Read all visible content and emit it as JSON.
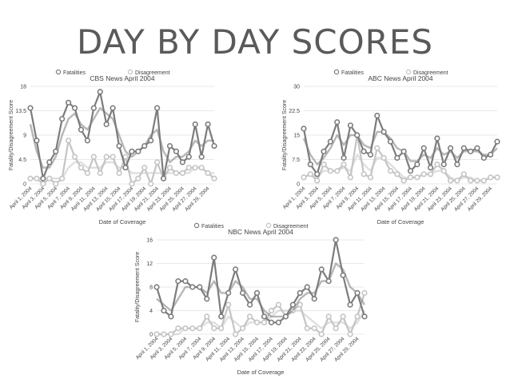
{
  "title": "DAY  BY DAY SCORES",
  "x_label_pattern": "April {n}, 2004",
  "chart_data": [
    {
      "type": "line",
      "title": "CBS News April 2004",
      "xlabel": "Date of Coverage",
      "ylabel": "Fatality/Disagreement Score",
      "ylim": [
        0,
        18
      ],
      "yticks": [
        0,
        4.5,
        9,
        13.5,
        18
      ],
      "x": [
        1,
        2,
        3,
        4,
        5,
        6,
        7,
        8,
        9,
        10,
        11,
        12,
        13,
        14,
        15,
        16,
        17,
        18,
        19,
        20,
        21,
        22,
        23,
        24,
        25,
        26,
        27,
        28,
        29,
        30
      ],
      "legend": "top",
      "series": [
        {
          "name": "Fatalities",
          "color": "#7c7c7c",
          "values": [
            14,
            8,
            1,
            4,
            6,
            12,
            15,
            14,
            10,
            8,
            14,
            17,
            11,
            14,
            7,
            3,
            6,
            6,
            7,
            8,
            14,
            1,
            7,
            6,
            4,
            5,
            11,
            5,
            11,
            7
          ],
          "smooth": [
            11,
            6,
            3,
            3,
            5,
            9,
            12,
            13,
            11,
            10,
            12,
            14,
            13,
            12,
            9,
            6,
            5,
            6,
            7,
            9,
            10,
            6,
            4,
            5,
            5,
            6,
            8,
            7,
            8,
            8
          ]
        },
        {
          "name": "Disagreement",
          "color": "#c4c4c4",
          "values": [
            1,
            1,
            0,
            1,
            0,
            1,
            8,
            5,
            3,
            2,
            5,
            2,
            5,
            5,
            2,
            5,
            0,
            1,
            3,
            0,
            4,
            1,
            3,
            2,
            2,
            3,
            3,
            3,
            2,
            1
          ],
          "smooth": [
            1,
            1,
            1,
            1,
            1,
            1,
            3,
            4,
            4,
            3,
            3,
            3,
            4,
            4,
            3,
            3,
            2,
            2,
            2,
            2,
            2,
            2,
            2,
            2,
            2,
            2,
            3,
            3,
            2,
            2
          ]
        }
      ]
    },
    {
      "type": "line",
      "title": "ABC News April 2004",
      "xlabel": "Date of Coverage",
      "ylabel": "Fatality/Disagreement Score",
      "ylim": [
        0,
        30
      ],
      "yticks": [
        0,
        7.5,
        15,
        22.5,
        30
      ],
      "x": [
        1,
        2,
        3,
        4,
        5,
        6,
        7,
        8,
        9,
        10,
        11,
        12,
        13,
        14,
        15,
        16,
        17,
        18,
        19,
        20,
        21,
        22,
        23,
        24,
        25,
        26,
        27,
        28,
        29,
        30
      ],
      "legend": "top",
      "series": [
        {
          "name": "Fatalities",
          "color": "#7c7c7c",
          "values": [
            17,
            6,
            3,
            10,
            13,
            19,
            8,
            18,
            15,
            10,
            9,
            21,
            16,
            13,
            8,
            10,
            4,
            6,
            11,
            5,
            14,
            6,
            11,
            6,
            11,
            10,
            11,
            8,
            9,
            13
          ],
          "smooth": [
            14,
            9,
            6,
            8,
            11,
            15,
            12,
            15,
            15,
            12,
            11,
            16,
            16,
            14,
            11,
            10,
            7,
            7,
            9,
            8,
            11,
            9,
            10,
            8,
            10,
            10,
            10,
            9,
            9,
            11
          ]
        },
        {
          "name": "Disagreement",
          "color": "#c4c4c4",
          "values": [
            2,
            3,
            1,
            6,
            4,
            4,
            6,
            2,
            15,
            3,
            2,
            11,
            8,
            4,
            3,
            1,
            2,
            2,
            3,
            3,
            6,
            4,
            1,
            1,
            3,
            1,
            1,
            1,
            2,
            2
          ],
          "smooth": [
            2,
            3,
            2,
            4,
            4,
            4,
            5,
            4,
            9,
            6,
            4,
            8,
            8,
            6,
            4,
            2,
            2,
            2,
            3,
            3,
            4,
            4,
            2,
            1,
            2,
            2,
            1,
            1,
            2,
            2
          ]
        }
      ]
    },
    {
      "type": "line",
      "title": "NBC News April 2004",
      "xlabel": "Date of Coverage",
      "ylabel": "Fatality/Disagreement Score",
      "ylim": [
        0,
        16
      ],
      "yticks": [
        0,
        4,
        8,
        12,
        16
      ],
      "x": [
        1,
        2,
        3,
        4,
        5,
        6,
        7,
        8,
        9,
        10,
        11,
        12,
        13,
        14,
        15,
        16,
        17,
        18,
        19,
        20,
        21,
        22,
        23,
        24,
        25,
        26,
        27,
        28,
        29,
        30
      ],
      "legend": "top",
      "series": [
        {
          "name": "Fatalities",
          "color": "#7c7c7c",
          "values": [
            8,
            4,
            3,
            9,
            9,
            8,
            8,
            6,
            13,
            3,
            7,
            11,
            7,
            5,
            7,
            3,
            2,
            2,
            3,
            5,
            7,
            8,
            6,
            11,
            9,
            16,
            10,
            5,
            7,
            3
          ],
          "smooth": [
            6,
            5,
            4,
            6,
            8,
            8,
            8,
            7,
            9,
            7,
            7,
            9,
            8,
            6,
            6,
            4,
            3,
            3,
            3,
            4,
            6,
            7,
            7,
            9,
            9,
            12,
            11,
            8,
            7,
            5
          ]
        },
        {
          "name": "Disagreement",
          "color": "#c4c4c4",
          "values": [
            0,
            0,
            0,
            1,
            1,
            1,
            1,
            3,
            1,
            1,
            5,
            0,
            1,
            3,
            2,
            2,
            4,
            5,
            3,
            4,
            5,
            1,
            1,
            0,
            3,
            1,
            3,
            0,
            3,
            7
          ],
          "smooth": [
            0,
            0,
            0,
            0,
            1,
            1,
            1,
            2,
            2,
            1,
            3,
            2,
            1,
            2,
            2,
            2,
            3,
            4,
            4,
            4,
            4,
            3,
            2,
            1,
            2,
            2,
            2,
            1,
            2,
            4
          ]
        }
      ]
    }
  ]
}
